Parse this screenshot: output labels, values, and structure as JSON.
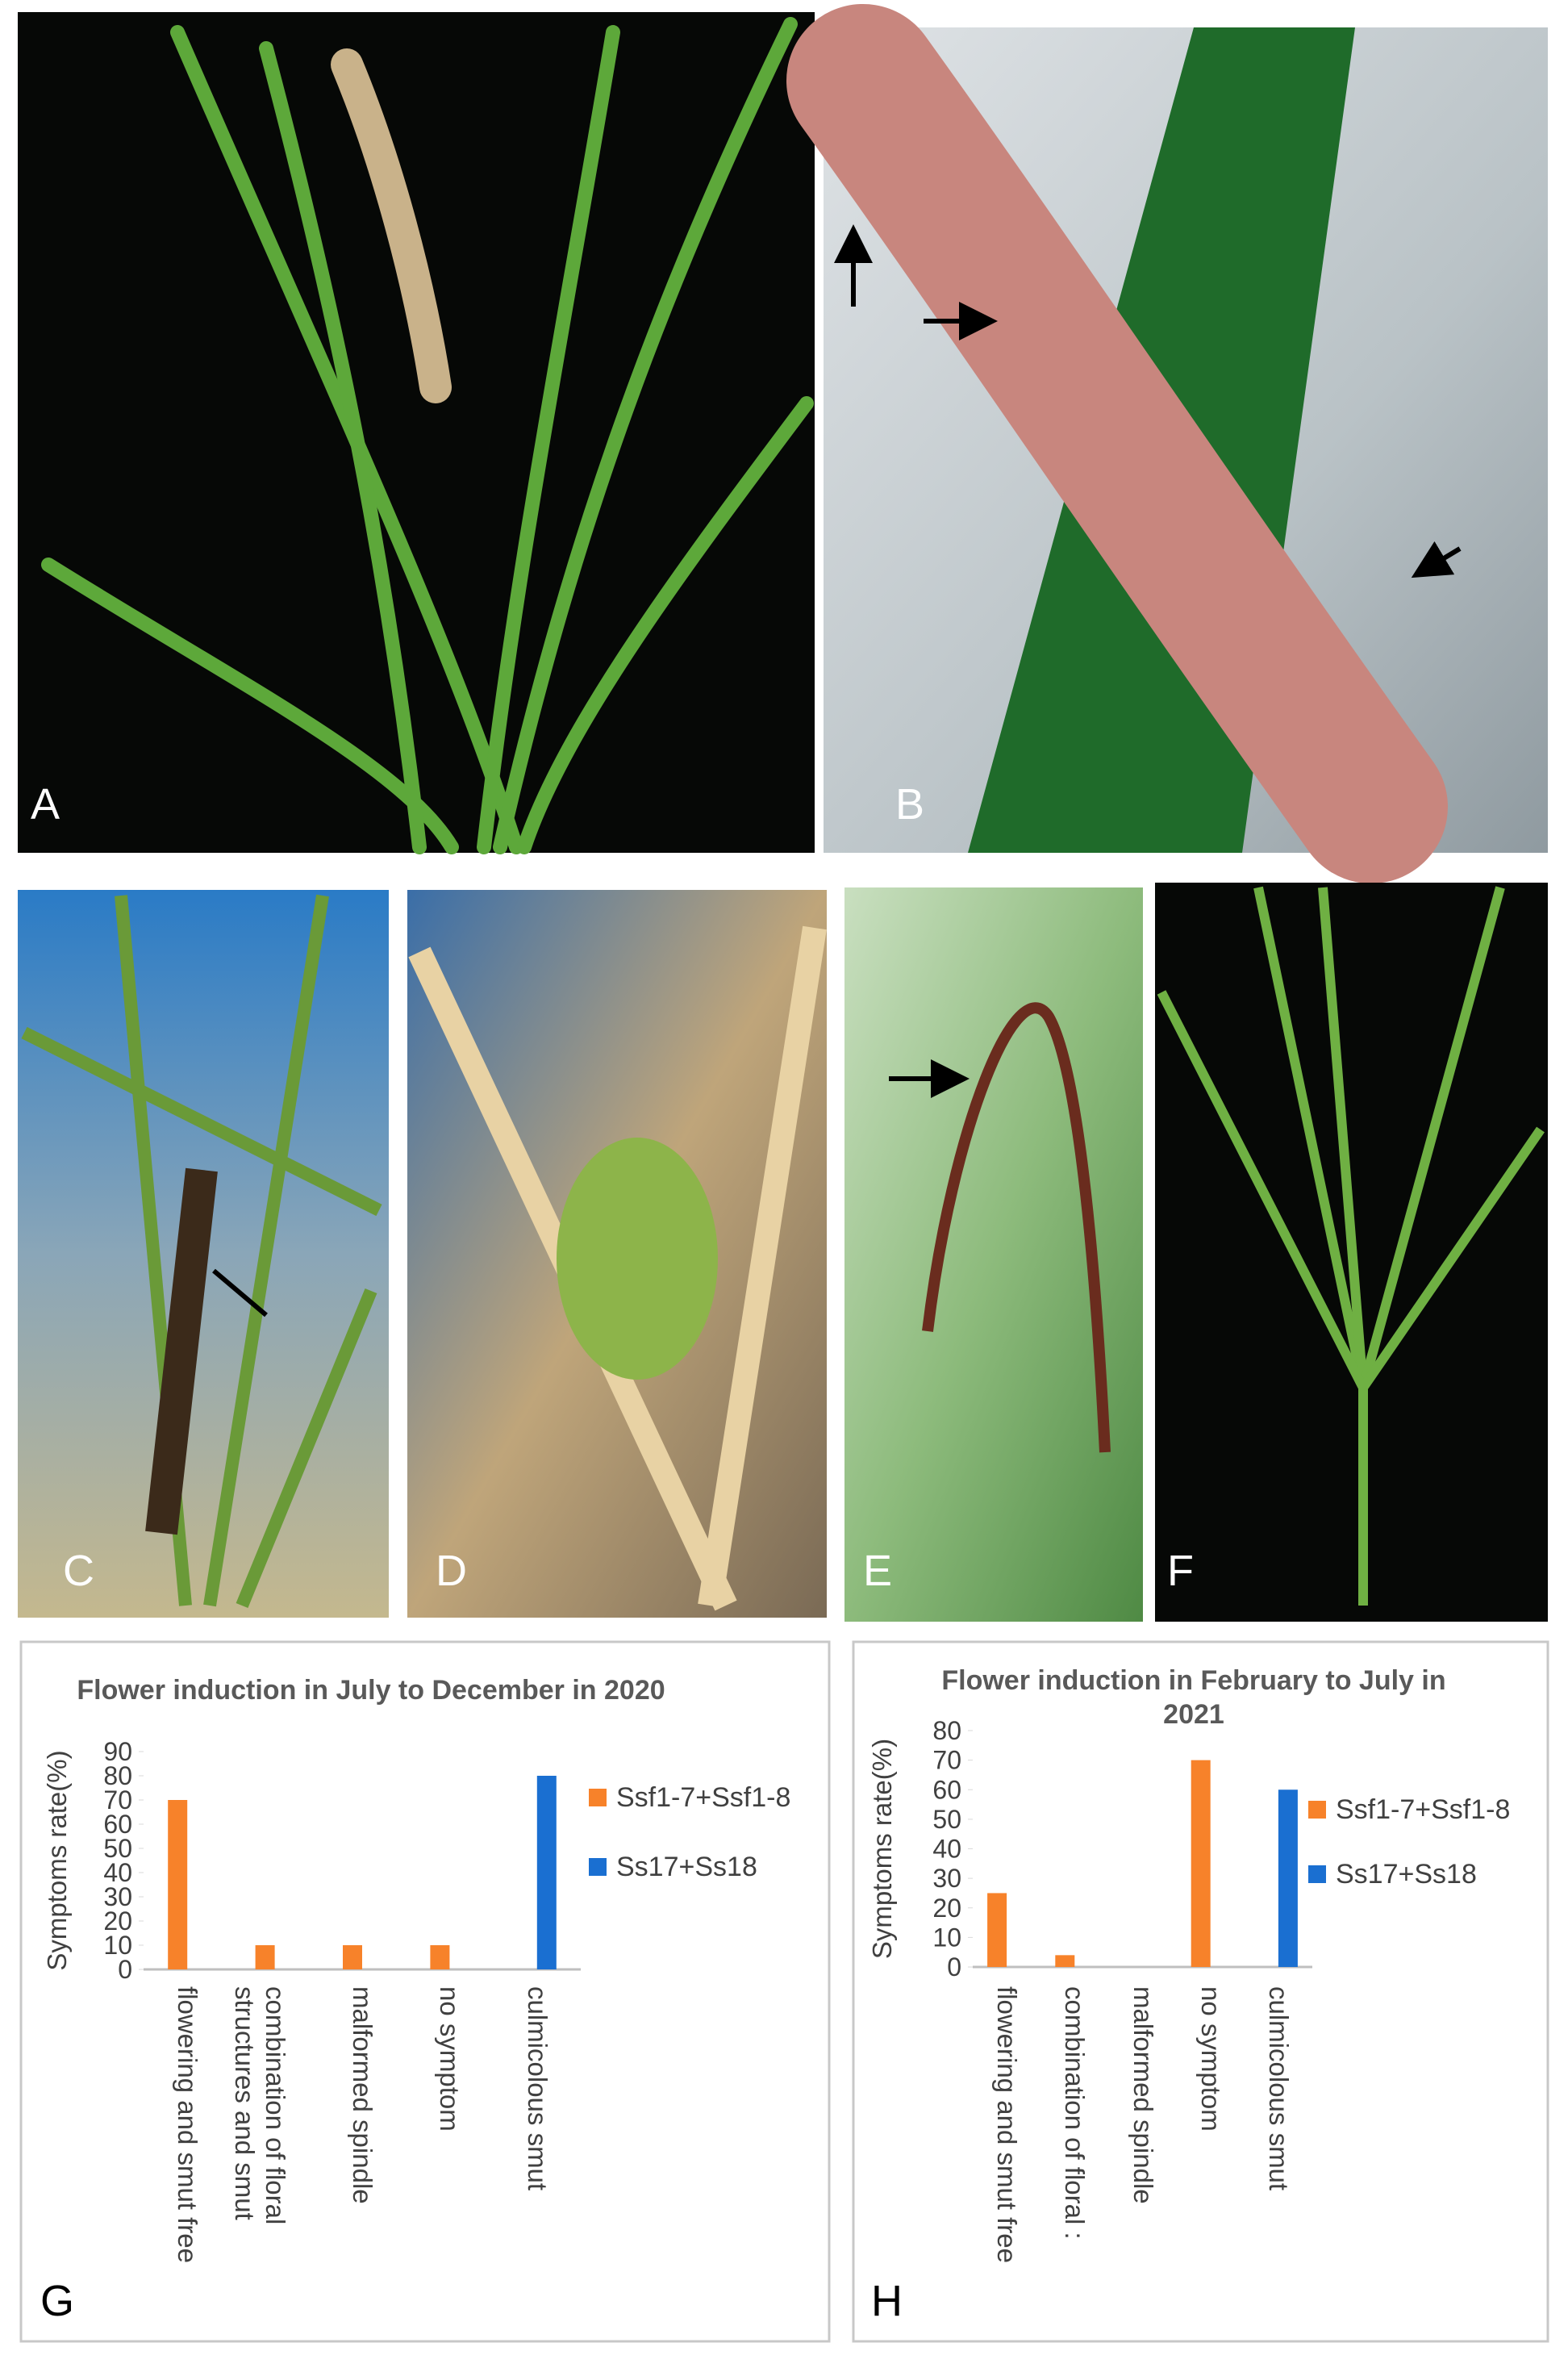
{
  "panels": [
    "A",
    "B",
    "C",
    "D",
    "E",
    "F"
  ],
  "chart_data": [
    {
      "type": "bar",
      "panel": "G",
      "title": "Flower induction  in July to December in 2020",
      "y_label": "Symptoms rate(%)",
      "categories": [
        "flowering and smut free",
        "combination of floral structures and smut",
        "malformed spindle",
        "no symptom",
        "culmicolous smut"
      ],
      "series": [
        {
          "name": "Ssf1-7+Ssf1-8",
          "color": "#f7822a",
          "values": [
            70,
            10,
            10,
            10,
            null
          ]
        },
        {
          "name": "Ss17+Ss18",
          "color": "#1a6fd1",
          "values": [
            null,
            null,
            null,
            null,
            80
          ]
        }
      ],
      "ylim": [
        0,
        90
      ],
      "yticks": [
        0,
        10,
        20,
        30,
        40,
        50,
        60,
        70,
        80,
        90
      ]
    },
    {
      "type": "bar",
      "panel": "H",
      "title": "Flower induction in February to July in 2021",
      "y_label": "Symptoms rate(%)",
      "categories": [
        "flowering and smut free",
        "combination of floral :",
        "malformed spindle",
        "no symptom",
        "culmicolous smut"
      ],
      "series": [
        {
          "name": "Ssf1-7+Ssf1-8",
          "color": "#f7822a",
          "values": [
            25,
            4,
            null,
            70,
            null
          ]
        },
        {
          "name": "Ss17+Ss18",
          "color": "#1a6fd1",
          "values": [
            null,
            null,
            null,
            null,
            60
          ]
        }
      ],
      "ylim": [
        0,
        80
      ],
      "yticks": [
        0,
        10,
        20,
        30,
        40,
        50,
        60,
        70,
        80
      ]
    }
  ]
}
